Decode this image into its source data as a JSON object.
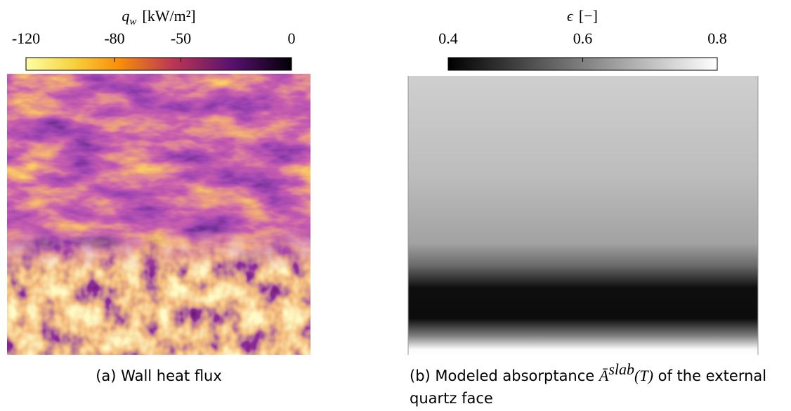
{
  "panels": [
    {
      "colorbar": {
        "symbol": "q",
        "subscript": "w",
        "unit": "[kW/m²]",
        "lim": [
          -120,
          0
        ],
        "ticks": [
          -120,
          -80,
          -50,
          0
        ]
      },
      "caption": {
        "label": "(a)",
        "text": "Wall heat flux"
      }
    },
    {
      "colorbar": {
        "symbol": "ϵ",
        "unit": "[−]",
        "lim": [
          0.4,
          0.8
        ],
        "ticks": [
          0.4,
          0.6,
          0.8
        ]
      },
      "caption": {
        "label": "(b)",
        "text": "Modeled absorptance",
        "math": "Ā",
        "superscript": "slab",
        "argument": "(T)",
        "rest": "of the external",
        "line2": "quartz face"
      }
    }
  ]
}
